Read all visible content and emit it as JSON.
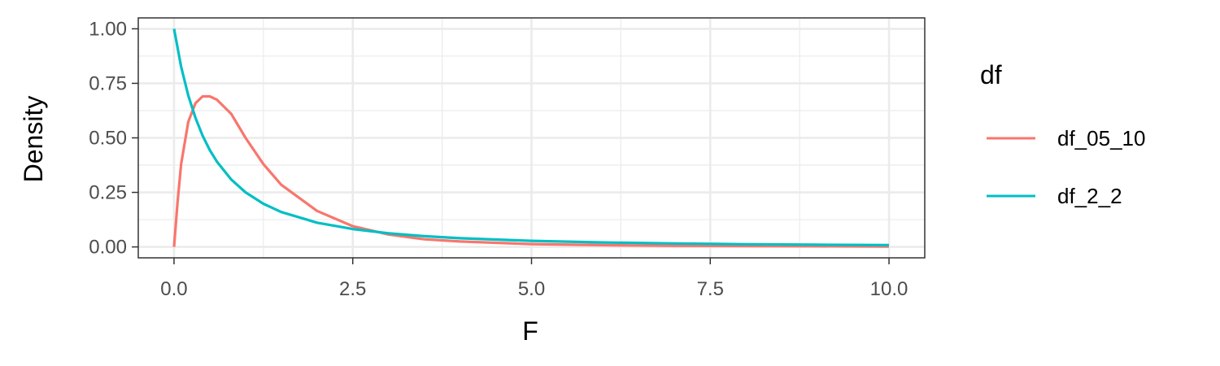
{
  "chart_data": {
    "type": "line",
    "title": "",
    "xlabel": "F",
    "ylabel": "Density",
    "xlim": [
      -0.5,
      10.5
    ],
    "ylim": [
      -0.05,
      1.05
    ],
    "x_ticks": [
      0,
      2.5,
      5,
      7.5,
      10
    ],
    "x_tick_labels": [
      "0.0",
      "2.5",
      "5.0",
      "7.5",
      "10.0"
    ],
    "y_ticks": [
      0,
      0.25,
      0.5,
      0.75,
      1
    ],
    "y_tick_labels": [
      "0.00",
      "0.25",
      "0.50",
      "0.75",
      "1.00"
    ],
    "grid": true,
    "legend": {
      "title": "df",
      "position": "right"
    },
    "series": [
      {
        "name": "df_05_10",
        "color": "#F8766D",
        "x": [
          0,
          0.05,
          0.1,
          0.2,
          0.3,
          0.4,
          0.5,
          0.6,
          0.8,
          1.0,
          1.25,
          1.5,
          2.0,
          2.5,
          3.0,
          3.5,
          4.0,
          5.0,
          6.0,
          7.0,
          8.0,
          9.0,
          10.0
        ],
        "y": [
          0,
          0.205,
          0.38,
          0.574,
          0.659,
          0.69,
          0.69,
          0.675,
          0.61,
          0.5,
          0.38,
          0.285,
          0.165,
          0.095,
          0.057,
          0.035,
          0.025,
          0.013,
          0.008,
          0.005,
          0.004,
          0.003,
          0.002
        ]
      },
      {
        "name": "df_2_2",
        "color": "#00BFC4",
        "x": [
          0,
          0.1,
          0.2,
          0.3,
          0.4,
          0.5,
          0.6,
          0.8,
          1.0,
          1.25,
          1.5,
          2.0,
          2.5,
          3.0,
          3.5,
          4.0,
          5.0,
          6.0,
          7.0,
          8.0,
          9.0,
          10.0
        ],
        "y": [
          1.0,
          0.826,
          0.694,
          0.592,
          0.51,
          0.444,
          0.391,
          0.309,
          0.25,
          0.198,
          0.16,
          0.111,
          0.082,
          0.0625,
          0.049,
          0.04,
          0.028,
          0.0204,
          0.0156,
          0.0123,
          0.01,
          0.0083
        ]
      }
    ]
  }
}
